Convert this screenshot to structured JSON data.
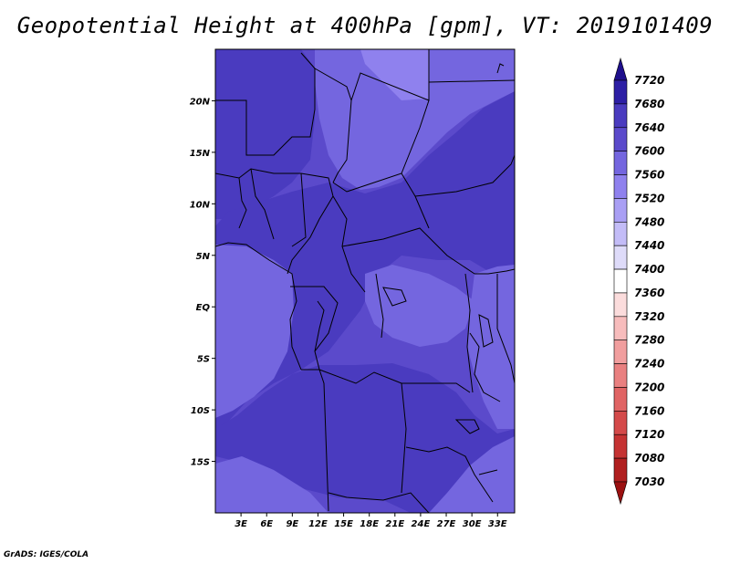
{
  "title": "Geopotential Height at 400hPa [gpm], VT: 2019101409",
  "credit": "GrADS: IGES/COLA",
  "map": {
    "lon_ticks": [
      "3E",
      "6E",
      "9E",
      "12E",
      "15E",
      "18E",
      "21E",
      "24E",
      "27E",
      "30E",
      "33E"
    ],
    "lat_ticks": [
      "20N",
      "15N",
      "10N",
      "5N",
      "EQ",
      "5S",
      "10S",
      "15S"
    ],
    "lon_range": [
      0,
      35
    ],
    "lat_range": [
      -20,
      25
    ],
    "field_colors": {
      "7480_7520": "#8f81ee",
      "7520_7560": "#7466df",
      "7560_7600": "#5b4acb",
      "7600_7640": "#4a3bbf"
    }
  },
  "colorbar": {
    "labels": [
      "7720",
      "7680",
      "7640",
      "7600",
      "7560",
      "7520",
      "7480",
      "7440",
      "7400",
      "7360",
      "7320",
      "7280",
      "7240",
      "7200",
      "7160",
      "7120",
      "7080",
      "7030"
    ],
    "colors": [
      "#1e0f8c",
      "#2d1fa5",
      "#4a3bbf",
      "#5b4acb",
      "#7466df",
      "#8f81ee",
      "#a99ff4",
      "#c3bcf7",
      "#dedbf9",
      "#ffffff",
      "#fbdcdc",
      "#f7bcbc",
      "#f19e9e",
      "#e98080",
      "#e06464",
      "#d44a4a",
      "#c53333",
      "#b01f1f",
      "#9b1010"
    ]
  }
}
